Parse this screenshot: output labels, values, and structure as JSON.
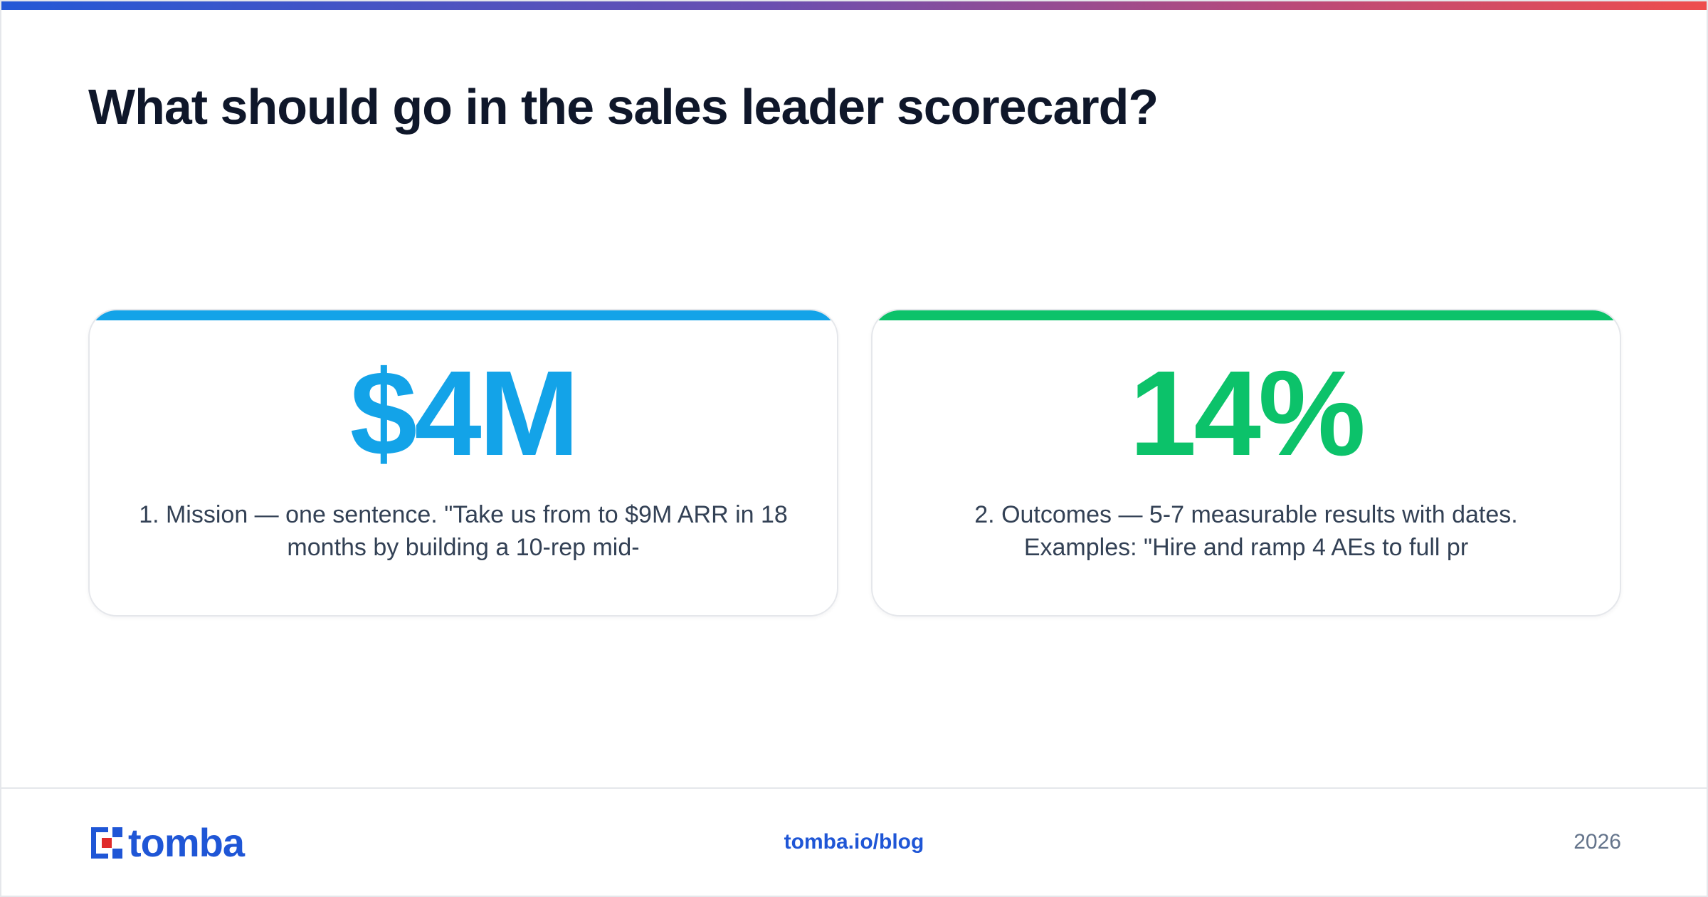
{
  "page": {
    "title": "What should go in the sales leader scorecard?"
  },
  "colors": {
    "card1_accent": "#13a3e8",
    "card2_accent": "#0cc26a",
    "brand_blue": "#1f56d6",
    "brand_red": "#e02a2a"
  },
  "cards": [
    {
      "stat": "$4M",
      "description": "1. Mission — one sentence. \"Take us from to $9M ARR in 18 months by building a 10-rep mid-"
    },
    {
      "stat": "14%",
      "description": "2. Outcomes — 5-7 measurable results with dates. Examples: \"Hire and ramp 4 AEs to full pr"
    }
  ],
  "footer": {
    "logo_text": "tomba",
    "logo_icon": "tomba-logo-icon",
    "link": "tomba.io/blog",
    "year": "2026"
  }
}
